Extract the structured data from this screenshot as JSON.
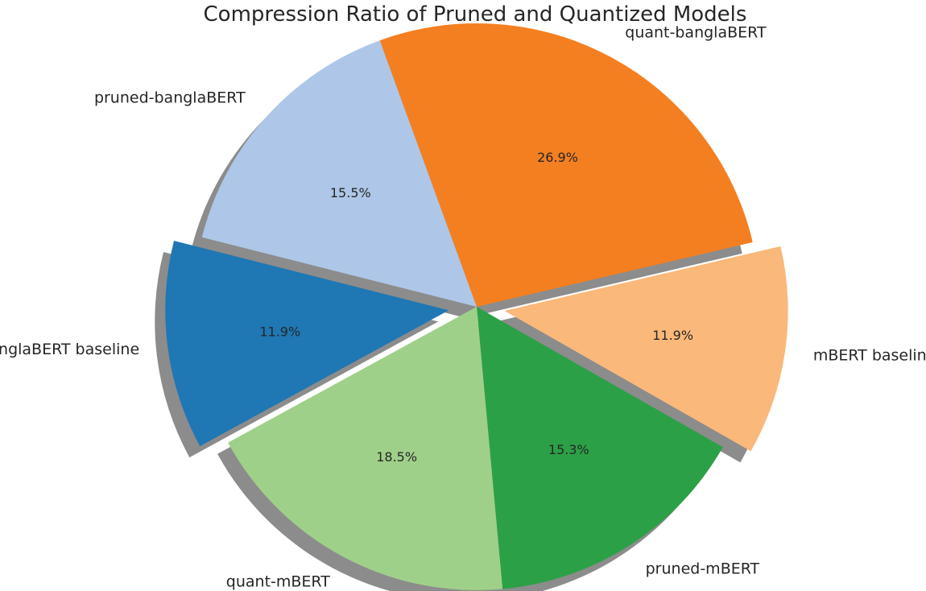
{
  "chart_data": {
    "type": "pie",
    "title": "Compression Ratio of Pruned and Quantized Models",
    "slices": [
      {
        "label": "quant-banglaBERT",
        "value": 26.9,
        "pct_label": "26.9%",
        "color": "#f47f20",
        "exploded": false
      },
      {
        "label": "mBERT baseline",
        "value": 11.9,
        "pct_label": "11.9%",
        "color": "#fab87a",
        "exploded": true
      },
      {
        "label": "pruned-mBERT",
        "value": 15.3,
        "pct_label": "15.3%",
        "color": "#2ca046",
        "exploded": false
      },
      {
        "label": "quant-mBERT",
        "value": 18.5,
        "pct_label": "18.5%",
        "color": "#9fd08a",
        "exploded": false
      },
      {
        "label": "banglaBERT baseline",
        "value": 11.9,
        "pct_label": "11.9%",
        "color": "#1f77b4",
        "exploded": true
      },
      {
        "label": "pruned-banglaBERT",
        "value": 15.5,
        "pct_label": "15.5%",
        "color": "#aec7e8",
        "exploded": false
      }
    ],
    "shadow": true,
    "legend": "none"
  }
}
